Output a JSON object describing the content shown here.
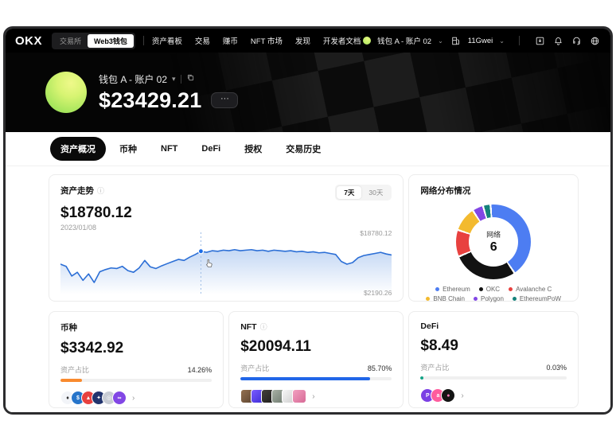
{
  "topnav": {
    "logo": "OKX",
    "toggle": {
      "exchange": "交易所",
      "wallet": "Web3钱包"
    },
    "links": [
      {
        "label": "资产看板"
      },
      {
        "label": "交易"
      },
      {
        "label": "赚币"
      },
      {
        "label": "NFT 市场"
      },
      {
        "label": "发现"
      },
      {
        "label": "开发者文档"
      }
    ],
    "account_label": "钱包 A - 账户 02",
    "gas_label": "11Gwei"
  },
  "hero": {
    "account_name": "钱包 A - 账户 02",
    "balance": "$23429.21",
    "more_label": "···"
  },
  "tabs": [
    {
      "label": "资产概况",
      "active": true
    },
    {
      "label": "币种"
    },
    {
      "label": "NFT"
    },
    {
      "label": "DeFi"
    },
    {
      "label": "授权"
    },
    {
      "label": "交易历史"
    }
  ],
  "trend_card": {
    "title": "资产走势",
    "value": "$18780.12",
    "date": "2023/01/08",
    "range_7d": "7天",
    "range_30d": "30天"
  },
  "network_card": {
    "title": "网络分布情况",
    "center_label": "网络",
    "center_value": "6"
  },
  "cards": {
    "coin": {
      "title": "币种",
      "value": "$3342.92",
      "ratio_label": "资产占比",
      "ratio_pct": "14.26%",
      "bar_color": "#f98a2e",
      "tokens": [
        {
          "name": "ethereum",
          "bg": "#f2f4f8",
          "fg": "#2b2b2b",
          "glyph": "♦"
        },
        {
          "name": "usdc",
          "bg": "#2775ca",
          "fg": "#ffffff",
          "glyph": "$"
        },
        {
          "name": "avalanche",
          "bg": "#e8413f",
          "fg": "#ffffff",
          "glyph": "▲"
        },
        {
          "name": "cronos",
          "bg": "#22346d",
          "fg": "#ffffff",
          "glyph": "✦"
        },
        {
          "name": "okb",
          "bg": "#c8ccd4",
          "fg": "#ffffff",
          "glyph": "◎"
        },
        {
          "name": "polygon",
          "bg": "#8247e5",
          "fg": "#ffffff",
          "glyph": "∞"
        }
      ]
    },
    "nft": {
      "title": "NFT",
      "value": "$20094.11",
      "ratio_label": "资产占比",
      "ratio_pct": "85.70%",
      "bar_color": "#2166e8",
      "thumbs": [
        {
          "from": "#93704f",
          "to": "#5d4531"
        },
        {
          "from": "#7b5cff",
          "to": "#3b2bd4"
        },
        {
          "from": "#43403c",
          "to": "#1e1c1a"
        },
        {
          "from": "#a8b0a5",
          "to": "#6e7a6f"
        },
        {
          "from": "#f6f6f6",
          "to": "#cfcfcf"
        },
        {
          "from": "#f2a0c0",
          "to": "#d76a96"
        }
      ]
    },
    "defi": {
      "title": "DeFi",
      "value": "$8.49",
      "ratio_label": "资产占比",
      "ratio_pct": "0.03%",
      "bar_color": "#14a386",
      "protocols": [
        {
          "name": "protocol-p",
          "bg": "#7b3fe4",
          "fg": "#ffffff",
          "glyph": "P"
        },
        {
          "name": "protocol-pink",
          "bg": "#ff5c9d",
          "fg": "#ffffff",
          "glyph": "a"
        },
        {
          "name": "protocol-dark",
          "bg": "#141414",
          "fg": "#ff7ab8",
          "glyph": "●"
        }
      ]
    }
  },
  "chart_data": [
    {
      "type": "area",
      "title": "资产走势",
      "selected_range": "7天",
      "date_at_cursor": "2023/01/08",
      "value_at_cursor": 18780.12,
      "y_max_label": "$18780.12",
      "y_min_label": "$2190.26",
      "line_color": "#2c6fd6",
      "fill_color": "#2f74d8",
      "cursor_index": 25,
      "points": [
        50,
        46,
        28,
        35,
        20,
        32,
        16,
        36,
        40,
        43,
        42,
        46,
        38,
        35,
        43,
        57,
        45,
        42,
        47,
        51,
        55,
        59,
        57,
        63,
        68,
        74,
        72,
        75,
        74,
        76,
        75,
        77,
        75,
        76,
        77,
        75,
        76,
        74,
        76,
        75,
        74,
        75,
        73,
        74,
        72,
        73,
        71,
        72,
        70,
        68,
        55,
        50,
        53,
        62,
        66,
        68,
        70,
        72,
        69,
        67
      ]
    },
    {
      "type": "pie",
      "title": "网络分布情况",
      "center": {
        "label": "网络",
        "value": 6
      },
      "legend_position": "bottom",
      "segments": [
        {
          "label": "Ethereum",
          "value": 42,
          "color": "#4d7df2"
        },
        {
          "label": "OKC",
          "value": 28,
          "color": "#121212"
        },
        {
          "label": "Avalanche C",
          "value": 11,
          "color": "#e8413f"
        },
        {
          "label": "BNB Chain",
          "value": 10,
          "color": "#f3ba2f"
        },
        {
          "label": "Polygon",
          "value": 4,
          "color": "#8247e5"
        },
        {
          "label": "EthereumPoW",
          "value": 2.5,
          "color": "#14827b"
        }
      ]
    }
  ]
}
